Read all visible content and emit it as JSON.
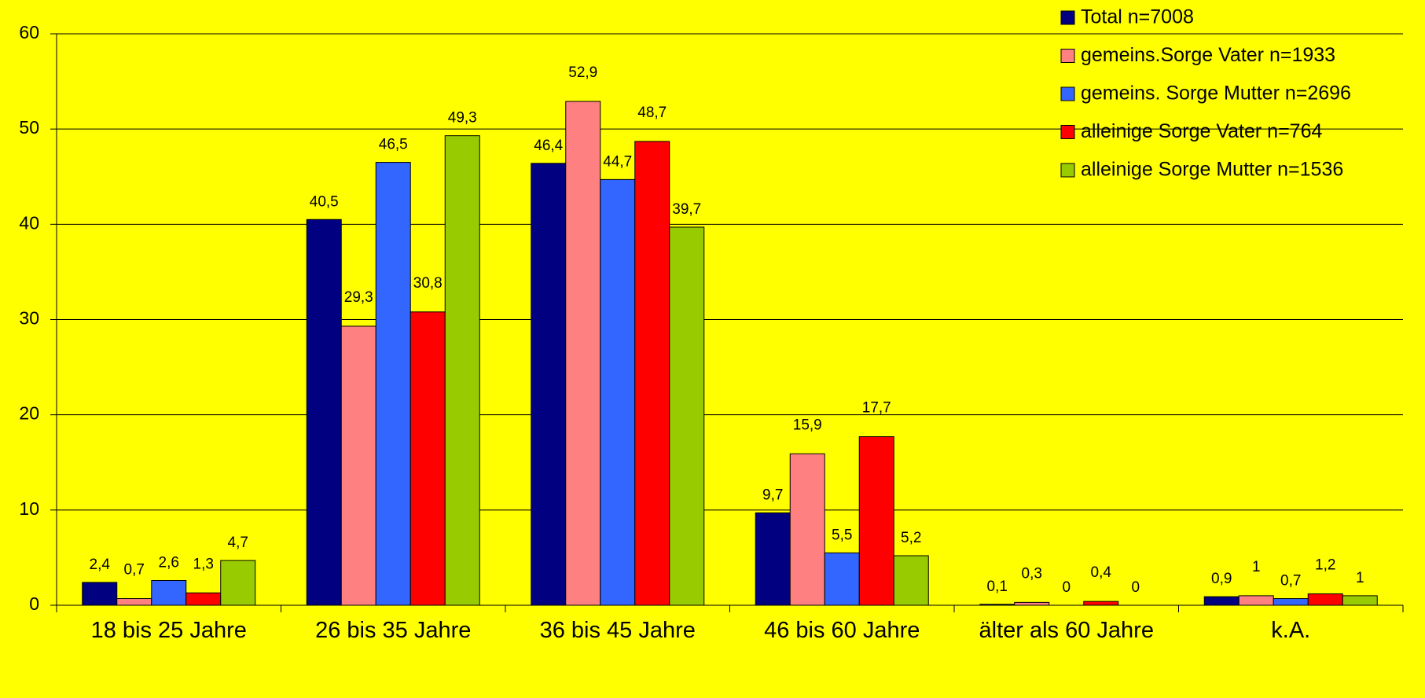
{
  "chart_data": {
    "type": "bar",
    "categories": [
      "18 bis 25 Jahre",
      "26 bis 35 Jahre",
      "36 bis 45 Jahre",
      "46 bis 60 Jahre",
      "älter als 60 Jahre",
      "k.A."
    ],
    "series": [
      {
        "name": "Total n=7008",
        "color": "#000080",
        "values": [
          2.4,
          40.5,
          46.4,
          9.7,
          0.1,
          0.9
        ],
        "value_labels": [
          "2,4",
          "40,5",
          "46,4",
          "9,7",
          "0,1",
          "0,9"
        ]
      },
      {
        "name": "gemeins.Sorge Vater n=1933",
        "color": "#ff8080",
        "values": [
          0.7,
          29.3,
          52.9,
          15.9,
          0.3,
          1
        ],
        "value_labels": [
          "0,7",
          "29,3",
          "52,9",
          "15,9",
          "0,3",
          "1"
        ]
      },
      {
        "name": "gemeins. Sorge Mutter n=2696",
        "color": "#3366ff",
        "values": [
          2.6,
          46.5,
          44.7,
          5.5,
          0,
          0.7
        ],
        "value_labels": [
          "2,6",
          "46,5",
          "44,7",
          "5,5",
          "0",
          "0,7"
        ]
      },
      {
        "name": "alleinige Sorge Vater n=764",
        "color": "#ff0000",
        "values": [
          1.3,
          30.8,
          48.7,
          17.7,
          0.4,
          1.2
        ],
        "value_labels": [
          "1,3",
          "30,8",
          "48,7",
          "17,7",
          "0,4",
          "1,2"
        ]
      },
      {
        "name": "alleinige Sorge Mutter n=1536",
        "color": "#99cc00",
        "values": [
          4.7,
          49.3,
          39.7,
          5.2,
          0,
          1
        ],
        "value_labels": [
          "4,7",
          "49,3",
          "39,7",
          "5,2",
          "0",
          "1"
        ]
      }
    ],
    "ylim": [
      0,
      60
    ],
    "yticks": [
      0,
      10,
      20,
      30,
      40,
      50,
      60
    ],
    "grid": true,
    "legend": "top-right"
  }
}
